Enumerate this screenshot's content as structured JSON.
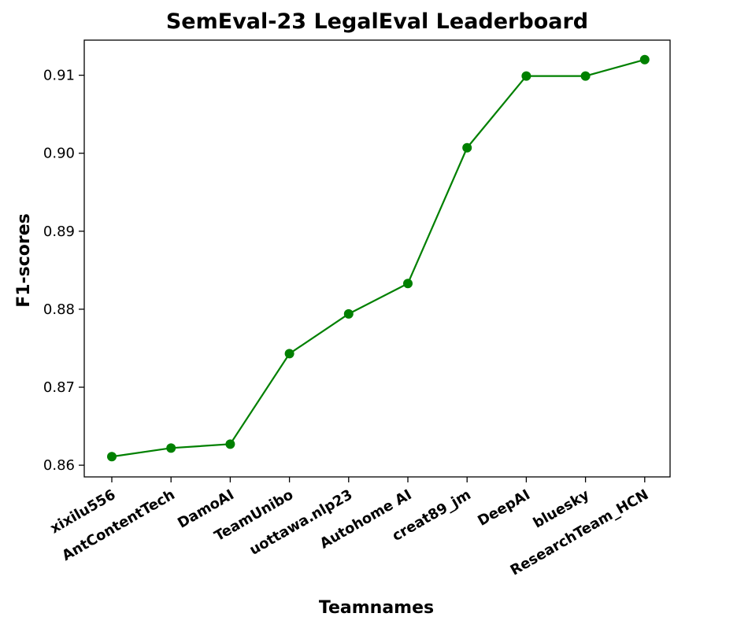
{
  "chart_data": {
    "type": "line",
    "title": "SemEval-23 LegalEval Leaderboard",
    "xlabel": "Teamnames",
    "ylabel": "F1-scores",
    "categories": [
      "xixilu556",
      "AntContentTech",
      "DamoAI",
      "TeamUnibo",
      "uottawa.nlp23",
      "Autohome AI",
      "creat89_jm",
      "DeepAI",
      "bluesky",
      "ResearchTeam_HCN"
    ],
    "series": [
      {
        "values": [
          0.8611,
          0.8622,
          0.8627,
          0.8743,
          0.8794,
          0.8833,
          0.9007,
          0.9099,
          0.9099,
          0.912
        ]
      }
    ],
    "ylim": [
      0.8585,
      0.9145
    ],
    "yticks": [
      "0.86",
      "0.87",
      "0.88",
      "0.89",
      "0.90",
      "0.91"
    ],
    "line_color": "#008000",
    "marker": "circle",
    "grid": false
  }
}
